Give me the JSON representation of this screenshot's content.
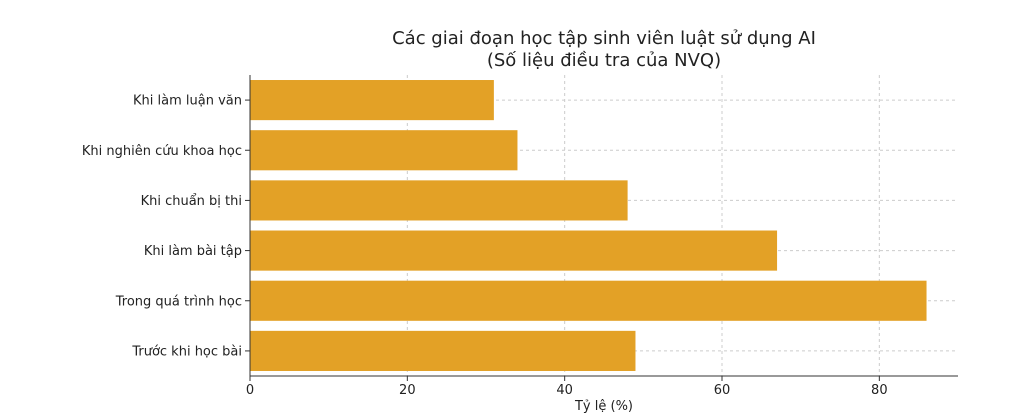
{
  "chart_data": {
    "type": "bar",
    "orientation": "horizontal",
    "title": "Các giai đoạn học tập sinh viên luật sử dụng AI",
    "subtitle": "(Số liệu điều tra của NVQ)",
    "xlabel": "Tỷ lệ (%)",
    "ylabel": "",
    "categories": [
      "Khi làm luận văn",
      "Khi nghiên cứu khoa học",
      "Khi chuẩn bị thi",
      "Khi làm bài tập",
      "Trong quá trình học",
      "Trước khi học bài"
    ],
    "values": [
      31,
      34,
      48,
      67,
      86,
      49
    ],
    "xlim": [
      0,
      90
    ],
    "xticks": [
      0,
      20,
      40,
      60,
      80
    ],
    "bar_color": "#E3A126",
    "grid": true
  }
}
